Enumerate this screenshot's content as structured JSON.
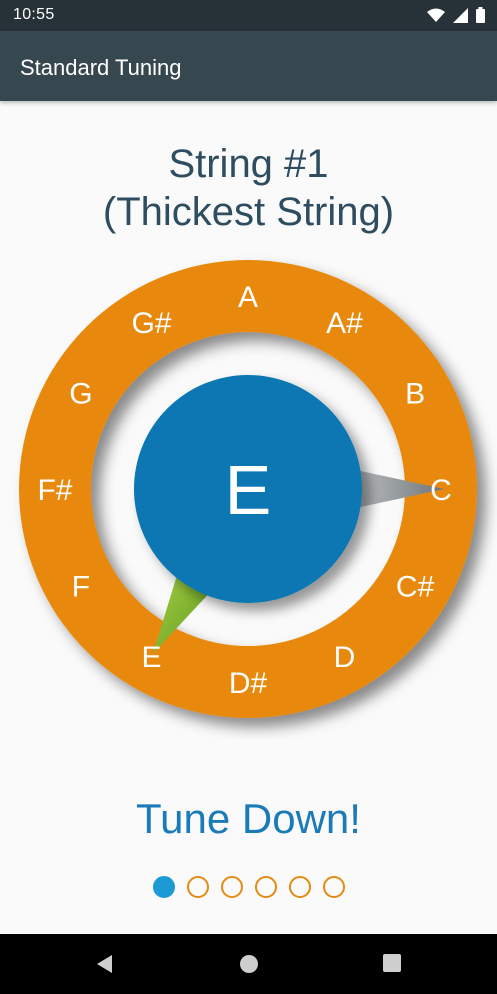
{
  "status_bar": {
    "time": "10:55",
    "icons": [
      "wifi-icon",
      "signal-icon",
      "battery-icon"
    ]
  },
  "app_bar": {
    "title": "Standard Tuning"
  },
  "heading": {
    "line1": "String #1",
    "line2": "(Thickest String)"
  },
  "tuner": {
    "center_note": "E",
    "notes": [
      "A",
      "A#",
      "B",
      "C",
      "C#",
      "D",
      "D#",
      "E",
      "F",
      "F#",
      "G",
      "G#"
    ],
    "target_note": "E",
    "detected_note": "C",
    "colors": {
      "ring": "#e8890c",
      "center": "#0777b4",
      "target_needle": "#7db52a",
      "detected_needle": "#9ea3a6"
    }
  },
  "message": {
    "text": "Tune Down!"
  },
  "pager": {
    "total": 6,
    "active_index": 0
  },
  "nav_bar": {
    "icons": [
      "back-icon",
      "home-icon",
      "recents-icon"
    ]
  }
}
